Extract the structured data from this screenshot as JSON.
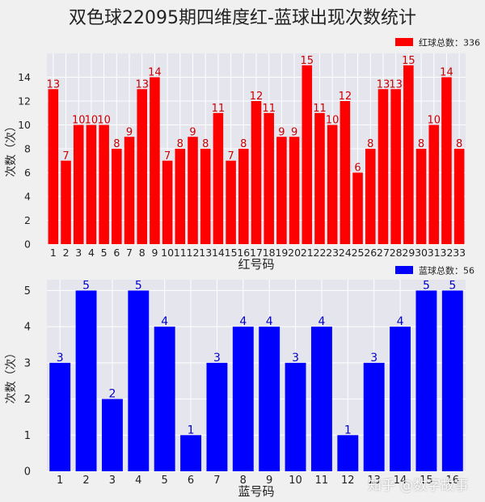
{
  "title": "双色球22095期四维度红-蓝球出现次数统计",
  "watermark": "知乎 @数字故事",
  "chart_data": [
    {
      "type": "bar",
      "color": "#ff0000",
      "label_color": "#cc0000",
      "categories": [
        "1",
        "2",
        "3",
        "4",
        "5",
        "6",
        "7",
        "8",
        "9",
        "10",
        "11",
        "12",
        "13",
        "14",
        "15",
        "16",
        "17",
        "18",
        "19",
        "20",
        "21",
        "22",
        "23",
        "24",
        "25",
        "26",
        "27",
        "28",
        "29",
        "30",
        "31",
        "32",
        "33"
      ],
      "values": [
        13,
        7,
        10,
        10,
        10,
        8,
        9,
        13,
        14,
        7,
        8,
        9,
        8,
        11,
        7,
        8,
        12,
        11,
        9,
        9,
        15,
        11,
        10,
        12,
        6,
        8,
        13,
        13,
        15,
        8,
        10,
        14,
        8
      ],
      "xlabel": "红号码",
      "ylabel": "次数（次）",
      "ylim": [
        0,
        16
      ],
      "yticks": [
        0,
        2,
        4,
        6,
        8,
        10,
        12,
        14
      ],
      "legend": "红球总数：336",
      "legend_position": "top-right",
      "grid": true
    },
    {
      "type": "bar",
      "color": "#0000ff",
      "label_color": "#0000cc",
      "categories": [
        "1",
        "2",
        "3",
        "4",
        "5",
        "6",
        "7",
        "8",
        "9",
        "10",
        "11",
        "12",
        "13",
        "14",
        "15",
        "16"
      ],
      "values": [
        3,
        5,
        2,
        5,
        4,
        1,
        3,
        4,
        4,
        3,
        4,
        1,
        3,
        4,
        5,
        5
      ],
      "xlabel": "蓝号码",
      "ylabel": "次数（次）",
      "ylim": [
        0,
        5.3
      ],
      "yticks": [
        0,
        1,
        2,
        3,
        4,
        5
      ],
      "legend": "蓝球总数：56",
      "legend_position": "top-right",
      "grid": true
    }
  ]
}
